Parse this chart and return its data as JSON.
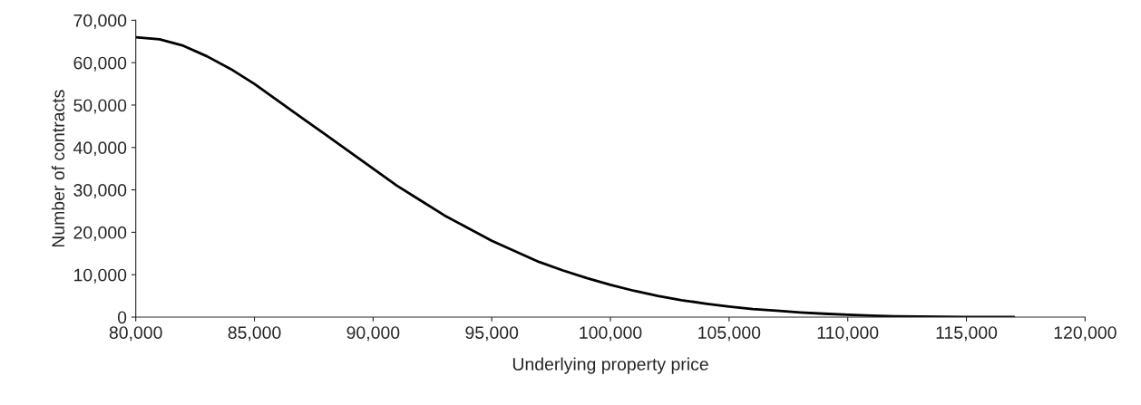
{
  "chart_data": {
    "type": "line",
    "xlabel": "Underlying property price",
    "ylabel": "Number of contracts",
    "x": [
      80000,
      81000,
      82000,
      83000,
      84000,
      85000,
      86000,
      87000,
      88000,
      89000,
      90000,
      91000,
      92000,
      93000,
      94000,
      95000,
      96000,
      97000,
      98000,
      99000,
      100000,
      101000,
      102000,
      103000,
      104000,
      105000,
      106000,
      107000,
      108000,
      109000,
      110000,
      111000,
      112000,
      113000,
      114000,
      115000,
      116000,
      117000
    ],
    "series": [
      {
        "color": "#000000",
        "values": [
          66000,
          65500,
          64000,
          61500,
          58500,
          55000,
          51000,
          47000,
          43000,
          39000,
          35000,
          31000,
          27500,
          24000,
          21000,
          18000,
          15500,
          13000,
          11000,
          9200,
          7600,
          6200,
          5000,
          4000,
          3200,
          2500,
          1900,
          1500,
          1100,
          800,
          550,
          350,
          200,
          120,
          70,
          40,
          20,
          10
        ]
      }
    ],
    "xlim": [
      80000,
      120000
    ],
    "ylim": [
      0,
      70000
    ],
    "xticks": [
      {
        "value": 80000,
        "label": "80,000"
      },
      {
        "value": 85000,
        "label": "85,000"
      },
      {
        "value": 90000,
        "label": "90,000"
      },
      {
        "value": 95000,
        "label": "95,000"
      },
      {
        "value": 100000,
        "label": "100,000"
      },
      {
        "value": 105000,
        "label": "105,000"
      },
      {
        "value": 110000,
        "label": "110,000"
      },
      {
        "value": 115000,
        "label": "115,000"
      },
      {
        "value": 120000,
        "label": "120,000"
      }
    ],
    "yticks": [
      {
        "value": 0,
        "label": "0"
      },
      {
        "value": 10000,
        "label": "10,000"
      },
      {
        "value": 20000,
        "label": "20,000"
      },
      {
        "value": 30000,
        "label": "30,000"
      },
      {
        "value": 40000,
        "label": "40,000"
      },
      {
        "value": 50000,
        "label": "50,000"
      },
      {
        "value": 60000,
        "label": "60,000"
      },
      {
        "value": 70000,
        "label": "70,000"
      }
    ],
    "grid": false,
    "marker": "none",
    "line_style": "solid"
  }
}
